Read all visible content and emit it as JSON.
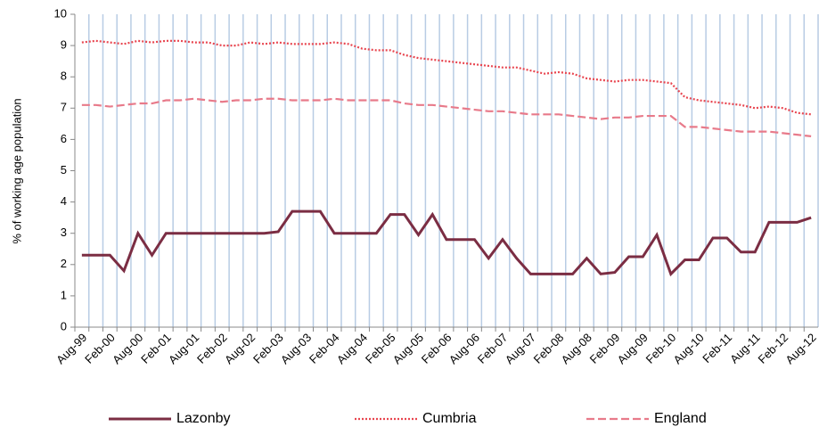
{
  "chart_data": {
    "type": "line",
    "y_label": "% of working age population",
    "categories": [
      "Aug-99",
      null,
      "Feb-00",
      null,
      "Aug-00",
      null,
      "Feb-01",
      null,
      "Aug-01",
      null,
      "Feb-02",
      null,
      "Aug-02",
      null,
      "Feb-03",
      null,
      "Aug-03",
      null,
      "Feb-04",
      null,
      "Aug-04",
      null,
      "Feb-05",
      null,
      "Aug-05",
      null,
      "Feb-06",
      null,
      "Aug-06",
      null,
      "Feb-07",
      null,
      "Aug-07",
      null,
      "Feb-08",
      null,
      "Aug-08",
      null,
      "Feb-09",
      null,
      "Aug-09",
      null,
      "Feb-10",
      null,
      "Aug-10",
      null,
      "Feb-11",
      null,
      "Aug-11",
      null,
      "Feb-12",
      null,
      "Aug-12"
    ],
    "series": [
      {
        "name": "Lazonby",
        "color": "#7b2d43",
        "dash": "solid",
        "values": [
          2.3,
          2.3,
          2.3,
          1.8,
          3.0,
          2.3,
          3.0,
          3.0,
          3.0,
          3.0,
          3.0,
          3.0,
          3.0,
          3.0,
          3.05,
          3.7,
          3.7,
          3.7,
          3.0,
          3.0,
          3.0,
          3.0,
          3.6,
          3.6,
          2.95,
          3.6,
          2.8,
          2.8,
          2.8,
          2.2,
          2.8,
          2.2,
          1.7,
          1.7,
          1.7,
          1.7,
          2.2,
          1.7,
          1.75,
          2.25,
          2.25,
          2.95,
          1.7,
          2.15,
          2.15,
          2.85,
          2.85,
          2.4,
          2.4,
          3.35,
          3.35,
          3.35,
          3.5
        ]
      },
      {
        "name": "Cumbria",
        "color": "#e8454f",
        "dash": "dotted",
        "values": [
          9.1,
          9.15,
          9.1,
          9.05,
          9.15,
          9.1,
          9.15,
          9.15,
          9.1,
          9.1,
          9.0,
          9.0,
          9.1,
          9.05,
          9.1,
          9.05,
          9.05,
          9.05,
          9.1,
          9.05,
          8.9,
          8.85,
          8.85,
          8.7,
          8.6,
          8.55,
          8.5,
          8.45,
          8.4,
          8.35,
          8.3,
          8.3,
          8.2,
          8.1,
          8.15,
          8.1,
          7.95,
          7.9,
          7.85,
          7.9,
          7.9,
          7.85,
          7.8,
          7.35,
          7.25,
          7.2,
          7.15,
          7.1,
          7.0,
          7.05,
          7.0,
          6.85,
          6.8
        ]
      },
      {
        "name": "England",
        "color": "#e87a8a",
        "dash": "dashed",
        "values": [
          7.1,
          7.1,
          7.05,
          7.1,
          7.15,
          7.15,
          7.25,
          7.25,
          7.3,
          7.25,
          7.2,
          7.25,
          7.25,
          7.3,
          7.3,
          7.25,
          7.25,
          7.25,
          7.3,
          7.25,
          7.25,
          7.25,
          7.25,
          7.15,
          7.1,
          7.1,
          7.05,
          7.0,
          6.95,
          6.9,
          6.9,
          6.85,
          6.8,
          6.8,
          6.8,
          6.75,
          6.7,
          6.65,
          6.7,
          6.7,
          6.75,
          6.75,
          6.75,
          6.4,
          6.4,
          6.35,
          6.3,
          6.25,
          6.25,
          6.25,
          6.2,
          6.15,
          6.1
        ]
      }
    ],
    "ylim": [
      0,
      10
    ],
    "yticks": [
      0,
      1,
      2,
      3,
      4,
      5,
      6,
      7,
      8,
      9,
      10
    ],
    "grid": "vertical",
    "legend": "bottom"
  }
}
